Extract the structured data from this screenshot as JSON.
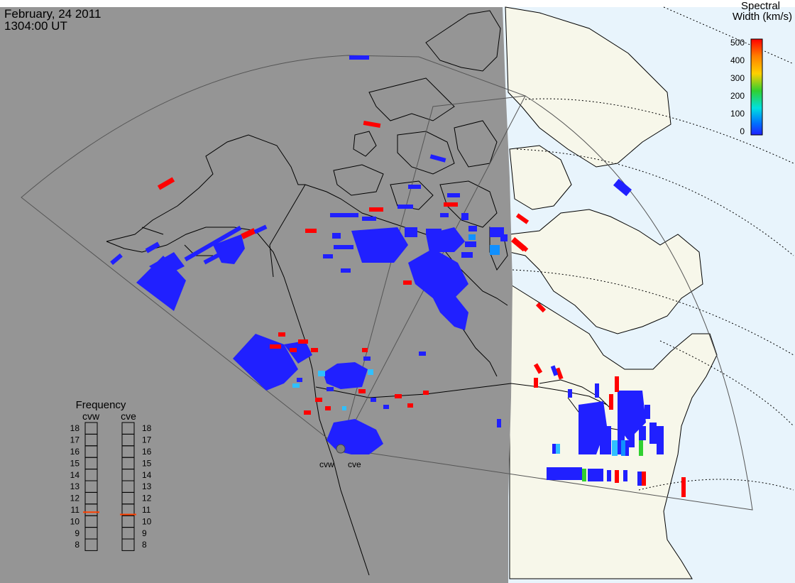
{
  "header": {
    "date": "February, 24 2011",
    "time": "1304:00 UT"
  },
  "colorbar": {
    "title_line1": "Spectral",
    "title_line2": "Width (km/s)",
    "ticks": [
      "500",
      "400",
      "300",
      "200",
      "100",
      "0"
    ],
    "stops": [
      "#ff0000",
      "#ff8000",
      "#ffd000",
      "#30d030",
      "#00e0e0",
      "#0070ff",
      "#2020ff"
    ]
  },
  "frequency_panel": {
    "title": "Frequency",
    "radars": [
      {
        "name": "cvw",
        "value_mhz": 10.8
      },
      {
        "name": "cve",
        "value_mhz": 10.6
      }
    ],
    "ticks": [
      "18",
      "17",
      "16",
      "15",
      "14",
      "13",
      "12",
      "11",
      "10",
      "9",
      "8"
    ]
  },
  "radars": [
    {
      "name": "cvw"
    },
    {
      "name": "cve"
    }
  ],
  "colors": {
    "night": "#959595",
    "day_land": "#f7f7ea",
    "day_ocean": "#e8f4fc",
    "scatter_low": "#2020ff",
    "scatter_high": "#ff0000"
  }
}
